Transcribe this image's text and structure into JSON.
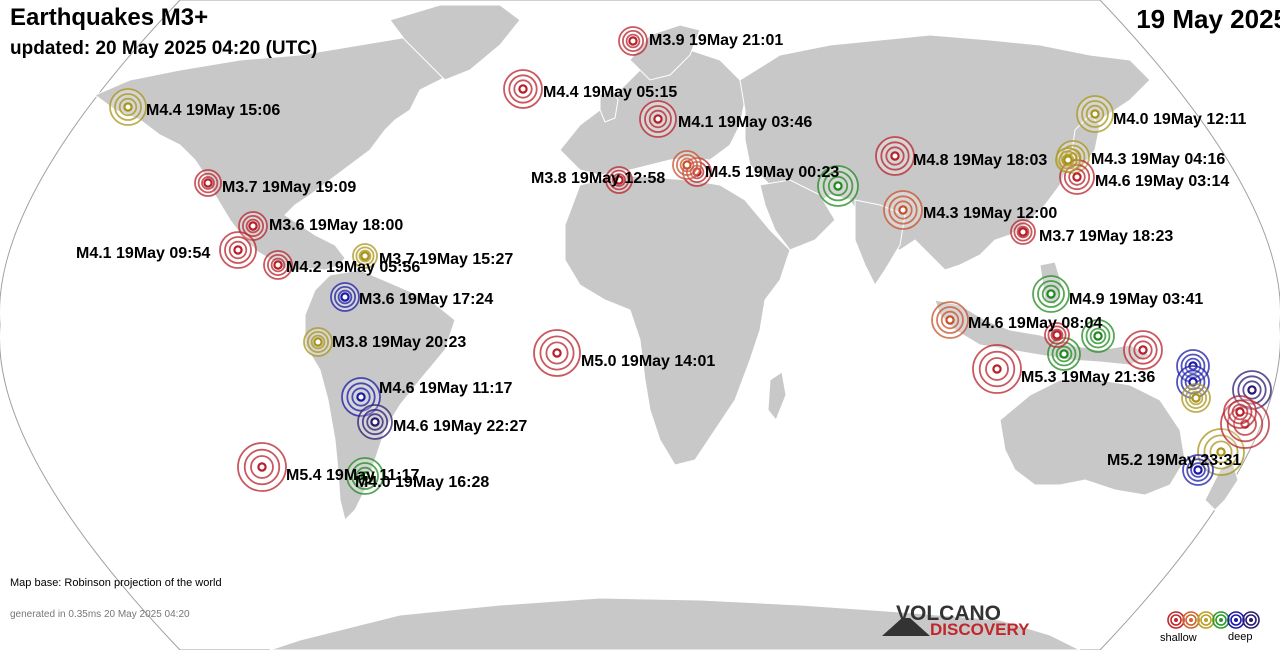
{
  "header": {
    "title": "Earthquakes M3+",
    "updated": "updated: 20 May 2025 04:20 (UTC)",
    "date": "19 May 2025"
  },
  "footer": {
    "map_base": "Map base: Robinson projection of the world",
    "generated": "generated in 0.35ms 20 May 2025 04:20"
  },
  "logo": {
    "line1": "VOLCANO",
    "line2": "DISCOVERY"
  },
  "legend": {
    "shallow": "shallow",
    "deep": "deep",
    "colors": [
      "#c0262c",
      "#d0622c",
      "#b8a020",
      "#2a9a2a",
      "#1a1aa8",
      "#2a1a70"
    ]
  },
  "colors": {
    "ocean": "#ffffff",
    "land": "#c8c8c8",
    "border": "#ffffff",
    "frame": "#a0a0a0"
  },
  "quakes": [
    {
      "label": "M3.9 19May 21:01",
      "color": "red"
    },
    {
      "label": "M4.4 19May 05:15",
      "color": "red"
    },
    {
      "label": "M4.4 19May 15:06",
      "color": "olive"
    },
    {
      "label": "M4.1 19May 03:46",
      "color": "red"
    },
    {
      "label": "M4.0 19May 12:11",
      "color": "olive"
    },
    {
      "label": "M4.8 19May 18:03",
      "color": "red"
    },
    {
      "label": "M4.3 19May 04:16",
      "color": "olive"
    },
    {
      "label": "M3.7 19May 19:09",
      "color": "red"
    },
    {
      "label": "M3.8 19May 12:58",
      "color": "red"
    },
    {
      "label": "M4.5 19May 00:23",
      "color": "red"
    },
    {
      "label": "M4.6 19May 03:14",
      "color": "red"
    },
    {
      "label": "M3.6 19May 18:00",
      "color": "red"
    },
    {
      "label": "M4.3 19May 12:00",
      "color": "orange"
    },
    {
      "label": "M3.7 19May 18:23",
      "color": "red"
    },
    {
      "label": "M4.1 19May 09:54",
      "color": "red"
    },
    {
      "label": "M3.7 19May 15:27",
      "color": "olive"
    },
    {
      "label": "M4.2 19May 05:56",
      "color": "red"
    },
    {
      "label": "M3.6 19May 17:24",
      "color": "blue"
    },
    {
      "label": "M4.9 19May 03:41",
      "color": "green"
    },
    {
      "label": "M4.6 19May 08:04",
      "color": "orange"
    },
    {
      "label": "M3.8 19May 20:23",
      "color": "olive"
    },
    {
      "label": "M5.0 19May 14:01",
      "color": "red"
    },
    {
      "label": "M5.3 19May 21:36",
      "color": "red"
    },
    {
      "label": "M4.6 19May 11:17",
      "color": "blue"
    },
    {
      "label": "M4.6 19May 22:27",
      "color": "navy"
    },
    {
      "label": "M5.2 19May 23:31",
      "color": "olive"
    },
    {
      "label": "M5.4 19May 11:17",
      "color": "red"
    },
    {
      "label": "M4.0 19May 16:28",
      "color": "green"
    },
    {
      "label": "",
      "color": "green"
    },
    {
      "label": "",
      "color": "orange"
    },
    {
      "label": "",
      "color": "green"
    },
    {
      "label": "",
      "color": "green"
    },
    {
      "label": "",
      "color": "red"
    },
    {
      "label": "",
      "color": "red"
    },
    {
      "label": "",
      "color": "blue"
    },
    {
      "label": "",
      "color": "blue"
    },
    {
      "label": "",
      "color": "olive"
    },
    {
      "label": "",
      "color": "navy"
    },
    {
      "label": "",
      "color": "red"
    },
    {
      "label": "",
      "color": "blue"
    },
    {
      "label": "",
      "color": "olive"
    },
    {
      "label": "",
      "color": "red"
    }
  ]
}
